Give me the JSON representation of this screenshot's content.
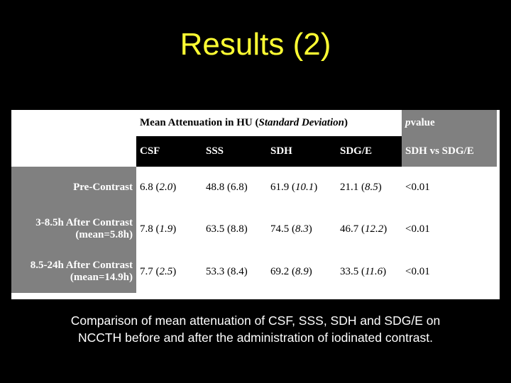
{
  "title": "Results (2)",
  "table": {
    "header": {
      "group": [
        {
          "text": "Mean Attenuation in HU ("
        },
        {
          "text": "Standard Deviation",
          "italic": true
        },
        {
          "text": ")"
        }
      ],
      "p_value": [
        {
          "text": "p",
          "italic": true
        },
        {
          "text": " value"
        }
      ],
      "columns": [
        "CSF",
        "SSS",
        "SDH",
        "SDG/E"
      ],
      "p_column": "SDH vs SDG/E"
    },
    "rows": [
      {
        "label": [
          "Pre-Contrast"
        ],
        "cells": [
          [
            {
              "text": "6.8 ("
            },
            {
              "text": "2.0",
              "italic": true
            },
            {
              "text": ")"
            }
          ],
          [
            {
              "text": "48.8 (6.8)"
            }
          ],
          [
            {
              "text": "61.9 ("
            },
            {
              "text": "10.1",
              "italic": true
            },
            {
              "text": ")"
            }
          ],
          [
            {
              "text": "21.1 ("
            },
            {
              "text": "8.5",
              "italic": true
            },
            {
              "text": ")"
            }
          ],
          [
            {
              "text": "<0.01"
            }
          ]
        ]
      },
      {
        "label": [
          "3-8.5h After Contrast",
          "(mean=5.8h)"
        ],
        "cells": [
          [
            {
              "text": "7.8 ("
            },
            {
              "text": "1.9",
              "italic": true
            },
            {
              "text": ")"
            }
          ],
          [
            {
              "text": "63.5 (8.8)"
            }
          ],
          [
            {
              "text": "74.5 ("
            },
            {
              "text": "8.3",
              "italic": true
            },
            {
              "text": ")"
            }
          ],
          [
            {
              "text": "46.7 ("
            },
            {
              "text": "12.2",
              "italic": true
            },
            {
              "text": ")"
            }
          ],
          [
            {
              "text": "<0.01"
            }
          ]
        ]
      },
      {
        "label": [
          "8.5-24h After Contrast",
          "(mean=14.9h)"
        ],
        "cells": [
          [
            {
              "text": "7.7 ("
            },
            {
              "text": "2.5",
              "italic": true
            },
            {
              "text": ")"
            }
          ],
          [
            {
              "text": "53.3 (8.4)"
            }
          ],
          [
            {
              "text": "69.2 ("
            },
            {
              "text": "8.9",
              "italic": true
            },
            {
              "text": ")"
            }
          ],
          [
            {
              "text": "33.5 ("
            },
            {
              "text": "11.6",
              "italic": true
            },
            {
              "text": ")"
            }
          ],
          [
            {
              "text": "<0.01"
            }
          ]
        ]
      }
    ]
  },
  "caption": [
    "Comparison of mean attenuation of CSF, SSS, SDH and SDG/E on",
    "NCCTH before and after the administration of iodinated contrast."
  ]
}
